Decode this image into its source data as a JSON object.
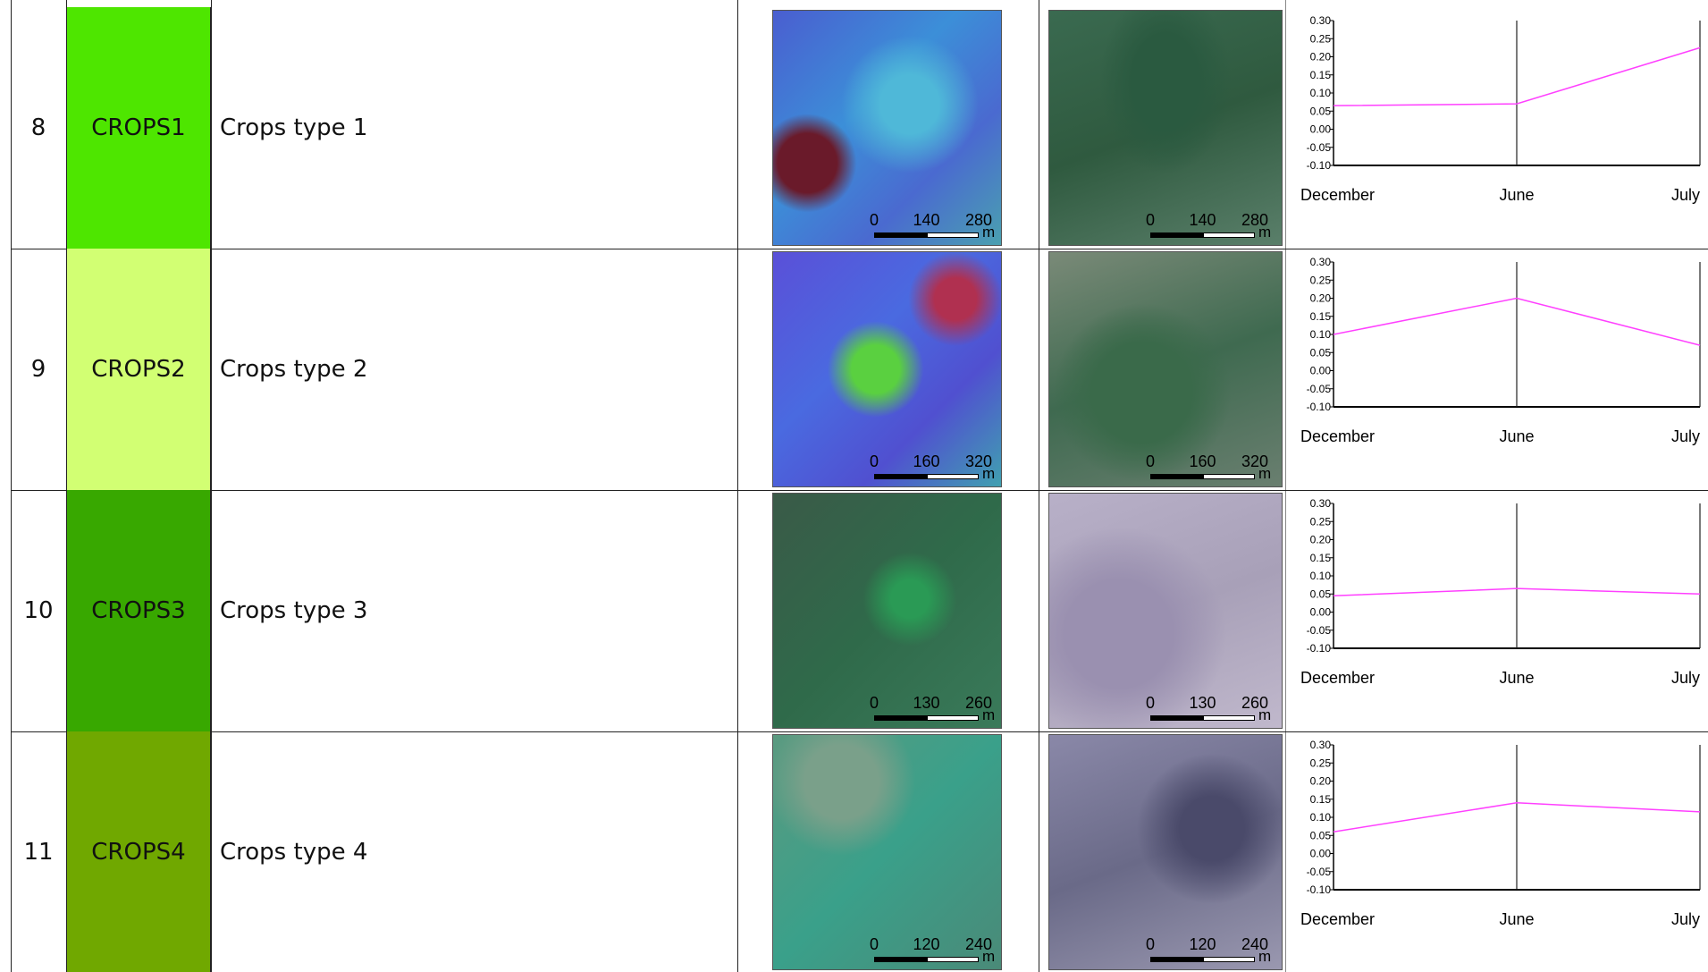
{
  "chart_axis": {
    "ylim": [
      -0.1,
      0.3
    ],
    "yticks": [
      {
        "value": 0.3,
        "label": "0.30"
      },
      {
        "value": 0.25,
        "label": "0.25"
      },
      {
        "value": 0.2,
        "label": "0.20"
      },
      {
        "value": 0.15,
        "label": "0.15"
      },
      {
        "value": 0.1,
        "label": "0.10"
      },
      {
        "value": 0.05,
        "label": "0.05"
      },
      {
        "value": 0,
        "label": "0.00"
      },
      {
        "value": -0.05,
        "label": "-0.05"
      },
      {
        "value": -0.1,
        "label": "-0.10"
      }
    ],
    "categories": [
      "December",
      "June",
      "July"
    ],
    "color": "#ff40ff"
  },
  "table": {
    "rows": [
      {
        "number": "8",
        "code": "CROPS1",
        "color": "#4ee600",
        "description": "Crops type 1",
        "scale_left": {
          "ticks": [
            0,
            140,
            280
          ],
          "unit": "m"
        },
        "scale_right": {
          "ticks": [
            0,
            140,
            280
          ],
          "unit": "m"
        },
        "values": [
          0.065,
          0.07,
          0.225
        ]
      },
      {
        "number": "9",
        "code": "CROPS2",
        "color": "#d2ff73",
        "description": "Crops type 2",
        "scale_left": {
          "ticks": [
            0,
            160,
            320
          ],
          "unit": "m"
        },
        "scale_right": {
          "ticks": [
            0,
            160,
            320
          ],
          "unit": "m"
        },
        "values": [
          0.1,
          0.2,
          0.07
        ]
      },
      {
        "number": "10",
        "code": "CROPS3",
        "color": "#38a800",
        "description": "Crops type 3",
        "scale_left": {
          "ticks": [
            0,
            130,
            260
          ],
          "unit": "m"
        },
        "scale_right": {
          "ticks": [
            0,
            130,
            260
          ],
          "unit": "m"
        },
        "values": [
          0.045,
          0.065,
          0.05
        ]
      },
      {
        "number": "11",
        "code": "CROPS4",
        "color": "#70a800",
        "description": "Crops type 4",
        "scale_left": {
          "ticks": [
            0,
            120,
            240
          ],
          "unit": "m"
        },
        "scale_right": {
          "ticks": [
            0,
            120,
            240
          ],
          "unit": "m"
        },
        "values": [
          0.06,
          0.14,
          0.115
        ]
      }
    ]
  }
}
